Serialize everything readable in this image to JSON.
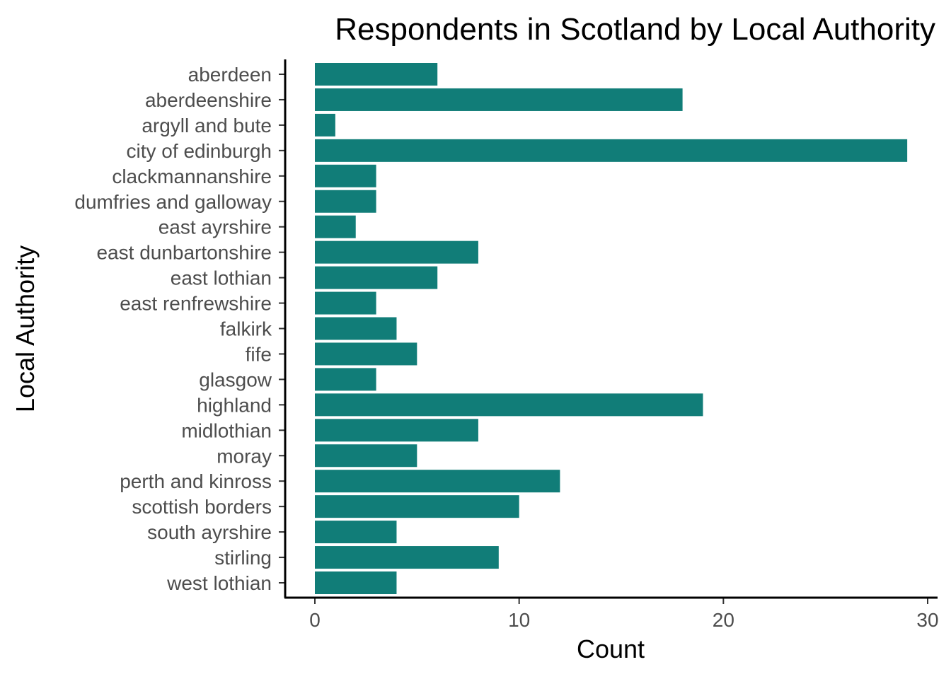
{
  "chart_data": {
    "type": "bar",
    "orientation": "horizontal",
    "title": "Respondents in Scotland by Local Authority",
    "xlabel": "Count",
    "ylabel": "Local Authority",
    "categories": [
      "aberdeen",
      "aberdeenshire",
      "argyll and bute",
      "city of edinburgh",
      "clackmannanshire",
      "dumfries and galloway",
      "east ayrshire",
      "east dunbartonshire",
      "east lothian",
      "east renfrewshire",
      "falkirk",
      "fife",
      "glasgow",
      "highland",
      "midlothian",
      "moray",
      "perth and kinross",
      "scottish borders",
      "south ayrshire",
      "stirling",
      "west lothian"
    ],
    "values": [
      6,
      18,
      1,
      29,
      3,
      3,
      2,
      8,
      6,
      3,
      4,
      5,
      3,
      19,
      8,
      5,
      12,
      10,
      4,
      9,
      4
    ],
    "xlim": [
      0,
      30
    ],
    "xticks": [
      0,
      10,
      20,
      30
    ],
    "grid": false,
    "legend": "none",
    "colors": {
      "bar": "#117d78",
      "axis": "#000000",
      "tick_text": "#4d4d4d"
    }
  }
}
